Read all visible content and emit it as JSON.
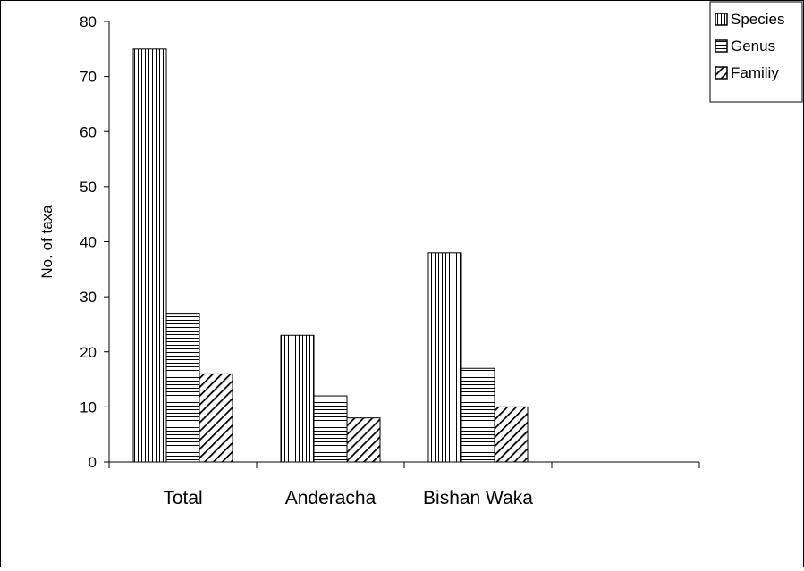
{
  "chart_data": {
    "type": "bar",
    "title": "",
    "xlabel": "",
    "ylabel": "No. of taxa",
    "ylim": [
      0,
      80
    ],
    "yticks": [
      0,
      10,
      20,
      30,
      40,
      50,
      60,
      70,
      80
    ],
    "categories": [
      "Total",
      "Anderacha",
      "Bishan Waka",
      ""
    ],
    "series": [
      {
        "name": "Species",
        "values": [
          75,
          23,
          38,
          null
        ],
        "pattern": "vertical-lines"
      },
      {
        "name": "Genus",
        "values": [
          27,
          12,
          17,
          null
        ],
        "pattern": "horizontal-lines"
      },
      {
        "name": "Familiy",
        "values": [
          16,
          8,
          10,
          null
        ],
        "pattern": "diagonal-hatch"
      }
    ],
    "grid": false,
    "legend_position": "top-right",
    "colors": {
      "bar_fill": "#ffffff",
      "ink": "#000000"
    }
  }
}
